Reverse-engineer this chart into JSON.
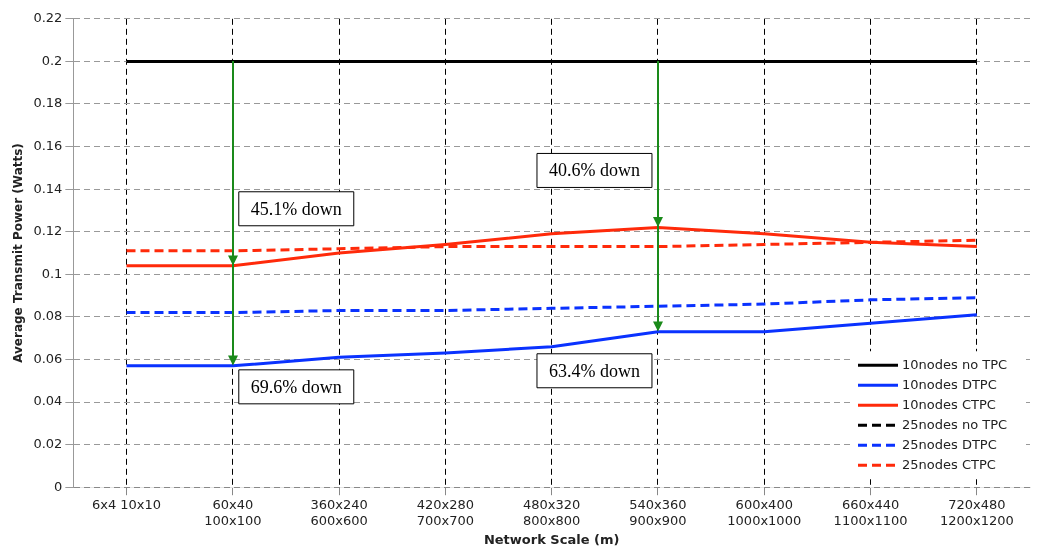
{
  "chart_data": {
    "type": "line",
    "xlabel": "Network Scale (m)",
    "ylabel": "Average Transmit Power (Watts)",
    "categories": [
      "6x4 10x10",
      "60x40\n100x100",
      "360x240\n600x600",
      "420x280\n700x700",
      "480x320\n800x800",
      "540x360\n900x900",
      "600x400\n1000x1000",
      "660x440\n1100x1100",
      "720x480\n1200x1200"
    ],
    "ylim": [
      0,
      0.22
    ],
    "yticks": [
      0,
      0.02,
      0.04,
      0.06,
      0.08,
      0.1,
      0.12,
      0.14,
      0.16,
      0.18,
      0.2,
      0.22
    ],
    "grid": true,
    "legend": "bottom right",
    "series": [
      {
        "name": "25nodes no TPC",
        "color": "#000000",
        "line_style": "dashed",
        "values": [
          null,
          null,
          null,
          null,
          null,
          null,
          null,
          null,
          null
        ]
      },
      {
        "name": "10nodes no TPC",
        "color": "#000000",
        "line_style": "solid",
        "values": [
          0.2,
          0.2,
          0.2,
          0.2,
          0.2,
          0.2,
          0.2,
          0.2,
          0.2
        ]
      },
      {
        "name": "10nodes DTPC",
        "color": "#0a32ff",
        "line_style": "solid",
        "values": [
          0.057,
          0.057,
          0.061,
          0.063,
          0.066,
          0.073,
          0.073,
          0.077,
          0.081
        ]
      },
      {
        "name": "10nodes CTPC",
        "color": "#ff2a0a",
        "line_style": "solid",
        "values": [
          0.104,
          0.104,
          0.11,
          0.114,
          0.119,
          0.122,
          0.119,
          0.115,
          0.113
        ]
      },
      {
        "name": "25nodes DTPC",
        "color": "#0a32ff",
        "line_style": "dashed",
        "values": [
          0.082,
          0.082,
          0.083,
          0.083,
          0.084,
          0.085,
          0.086,
          0.088,
          0.089
        ]
      },
      {
        "name": "25nodes CTPC",
        "color": "#ff2a0a",
        "line_style": "dashed",
        "values": [
          0.111,
          0.111,
          0.112,
          0.113,
          0.113,
          0.113,
          0.114,
          0.115,
          0.116
        ]
      }
    ],
    "annotations": [
      {
        "text": "45.1% down",
        "x": "60x40\n100x100",
        "y": 0.104
      },
      {
        "text": "69.6% down",
        "x": "60x40\n100x100",
        "y": 0.057
      },
      {
        "text": "40.6% down",
        "x": "540x360\n900x900",
        "y": 0.122
      },
      {
        "text": "63.4% down",
        "x": "540x360\n900x900",
        "y": 0.073
      }
    ]
  }
}
